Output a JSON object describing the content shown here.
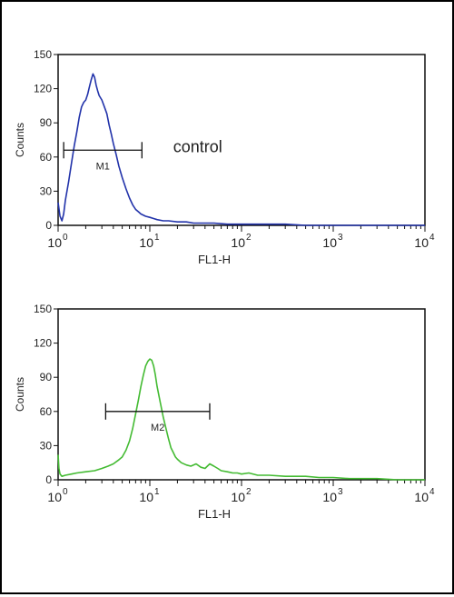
{
  "chart_data": [
    {
      "type": "line",
      "xscale": "log",
      "xlim": [
        1,
        10000
      ],
      "ylim": [
        0,
        150
      ],
      "xlabel": "FL1-H",
      "ylabel": "Counts",
      "yticks": [
        "0",
        "30",
        "60",
        "90",
        "120",
        "150"
      ],
      "xticks": [
        {
          "base": "10",
          "exp": "0"
        },
        {
          "base": "10",
          "exp": "1"
        },
        {
          "base": "10",
          "exp": "2"
        },
        {
          "base": "10",
          "exp": "3"
        },
        {
          "base": "10",
          "exp": "4"
        }
      ],
      "color": "#2233aa",
      "annotation": "control",
      "marker": {
        "label": "M1",
        "from": 1.15,
        "to": 8.2,
        "y": 66
      },
      "series": [
        {
          "x": [
            1.0,
            1.05,
            1.1,
            1.15,
            1.2,
            1.3,
            1.4,
            1.5,
            1.6,
            1.7,
            1.8,
            1.9,
            2.0,
            2.1,
            2.2,
            2.3,
            2.4,
            2.5,
            2.6,
            2.7,
            2.8,
            2.9,
            3.0,
            3.2,
            3.4,
            3.6,
            3.8,
            4.0,
            4.3,
            4.6,
            5.0,
            5.5,
            6.0,
            6.5,
            7.0,
            7.5,
            8.0,
            9.0,
            10,
            11,
            12,
            14,
            16,
            20,
            25,
            30,
            40,
            50,
            70,
            100,
            150,
            200,
            300,
            500,
            1000,
            2000,
            5000,
            10000
          ],
          "y": [
            20,
            8,
            4,
            10,
            22,
            38,
            55,
            70,
            82,
            95,
            104,
            108,
            110,
            115,
            122,
            128,
            133,
            130,
            123,
            118,
            114,
            112,
            110,
            104,
            98,
            88,
            80,
            72,
            62,
            52,
            42,
            32,
            24,
            18,
            14,
            12,
            10,
            8,
            7,
            6,
            5,
            4,
            4,
            3,
            3,
            2,
            2,
            2,
            1,
            1,
            1,
            1,
            1,
            0,
            0,
            0,
            0,
            0
          ]
        }
      ]
    },
    {
      "type": "line",
      "xscale": "log",
      "xlim": [
        1,
        10000
      ],
      "ylim": [
        0,
        150
      ],
      "xlabel": "FL1-H",
      "ylabel": "Counts",
      "yticks": [
        "0",
        "30",
        "60",
        "90",
        "120",
        "150"
      ],
      "xticks": [
        {
          "base": "10",
          "exp": "0"
        },
        {
          "base": "10",
          "exp": "1"
        },
        {
          "base": "10",
          "exp": "2"
        },
        {
          "base": "10",
          "exp": "3"
        },
        {
          "base": "10",
          "exp": "4"
        }
      ],
      "color": "#44bb33",
      "annotation": "",
      "marker": {
        "label": "M2",
        "from": 3.3,
        "to": 45,
        "y": 60
      },
      "series": [
        {
          "x": [
            1.0,
            1.02,
            1.05,
            1.1,
            1.2,
            1.4,
            1.6,
            2.0,
            2.5,
            3.0,
            3.5,
            4.0,
            4.5,
            5.0,
            5.5,
            6.0,
            6.5,
            7.0,
            7.5,
            8.0,
            8.5,
            9.0,
            9.5,
            10,
            10.5,
            11,
            11.5,
            12,
            13,
            14,
            15,
            16,
            17,
            18,
            19,
            20,
            22,
            25,
            28,
            32,
            36,
            40,
            45,
            50,
            55,
            60,
            70,
            80,
            90,
            100,
            120,
            150,
            200,
            300,
            500,
            700,
            1000,
            1500,
            2000,
            3000,
            5000,
            10000
          ],
          "y": [
            22,
            10,
            5,
            3,
            4,
            5,
            6,
            7,
            8,
            10,
            12,
            14,
            17,
            20,
            26,
            34,
            45,
            58,
            70,
            82,
            92,
            100,
            104,
            106,
            105,
            100,
            92,
            82,
            68,
            55,
            45,
            36,
            28,
            24,
            20,
            18,
            15,
            13,
            12,
            14,
            11,
            10,
            14,
            12,
            10,
            8,
            7,
            6,
            6,
            5,
            6,
            4,
            4,
            3,
            3,
            2,
            2,
            1,
            1,
            1,
            0,
            0
          ]
        }
      ]
    }
  ]
}
